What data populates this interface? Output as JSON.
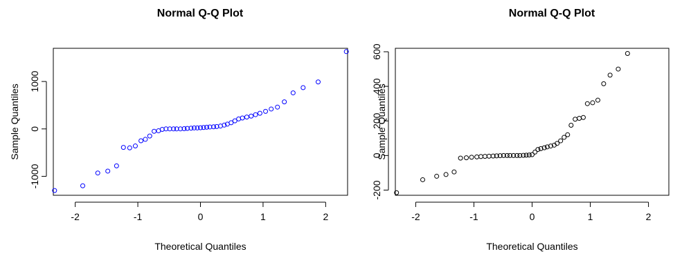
{
  "chart_data": [
    {
      "type": "scatter",
      "title": "Normal Q-Q Plot",
      "xlabel": "Theoretical Quantiles",
      "ylabel": "Sample Quantiles",
      "xlim": [
        -2.35,
        2.35
      ],
      "ylim": [
        -1400,
        1700
      ],
      "xticks": [
        -2,
        -1,
        0,
        1,
        2
      ],
      "yticks": [
        -1000,
        0,
        1000
      ],
      "point_color": "#0000ff",
      "grid": false,
      "points": [
        [
          -2.33,
          -1300
        ],
        [
          -1.88,
          -1200
        ],
        [
          -1.64,
          -930
        ],
        [
          -1.48,
          -890
        ],
        [
          -1.34,
          -780
        ],
        [
          -1.23,
          -390
        ],
        [
          -1.13,
          -400
        ],
        [
          -1.04,
          -360
        ],
        [
          -0.95,
          -250
        ],
        [
          -0.88,
          -220
        ],
        [
          -0.81,
          -150
        ],
        [
          -0.74,
          -50
        ],
        [
          -0.67,
          -40
        ],
        [
          -0.61,
          -10
        ],
        [
          -0.55,
          0
        ],
        [
          -0.49,
          0
        ],
        [
          -0.43,
          0
        ],
        [
          -0.38,
          0
        ],
        [
          -0.32,
          0
        ],
        [
          -0.26,
          5
        ],
        [
          -0.21,
          10
        ],
        [
          -0.15,
          15
        ],
        [
          -0.1,
          20
        ],
        [
          -0.05,
          20
        ],
        [
          0.0,
          25
        ],
        [
          0.05,
          30
        ],
        [
          0.1,
          35
        ],
        [
          0.15,
          40
        ],
        [
          0.21,
          45
        ],
        [
          0.26,
          50
        ],
        [
          0.32,
          60
        ],
        [
          0.38,
          80
        ],
        [
          0.43,
          100
        ],
        [
          0.49,
          130
        ],
        [
          0.55,
          170
        ],
        [
          0.61,
          210
        ],
        [
          0.67,
          230
        ],
        [
          0.74,
          250
        ],
        [
          0.81,
          270
        ],
        [
          0.88,
          300
        ],
        [
          0.95,
          330
        ],
        [
          1.04,
          370
        ],
        [
          1.13,
          420
        ],
        [
          1.23,
          460
        ],
        [
          1.34,
          570
        ],
        [
          1.48,
          760
        ],
        [
          1.64,
          870
        ],
        [
          1.88,
          990
        ],
        [
          2.33,
          1630
        ]
      ]
    },
    {
      "type": "scatter",
      "title": "Normal Q-Q Plot",
      "xlabel": "Theoretical Quantiles",
      "ylabel": "Sample Quantiles",
      "xlim": [
        -2.35,
        2.35
      ],
      "ylim": [
        -230,
        620
      ],
      "xticks": [
        -2,
        -1,
        0,
        1,
        2
      ],
      "yticks": [
        -200,
        0,
        200,
        400,
        600
      ],
      "point_color": "#000000",
      "grid": false,
      "points": [
        [
          -2.33,
          -215
        ],
        [
          -1.88,
          -140
        ],
        [
          -1.64,
          -120
        ],
        [
          -1.48,
          -110
        ],
        [
          -1.34,
          -95
        ],
        [
          -1.23,
          -15
        ],
        [
          -1.13,
          -13
        ],
        [
          -1.04,
          -10
        ],
        [
          -0.95,
          -8
        ],
        [
          -0.88,
          -6
        ],
        [
          -0.81,
          -5
        ],
        [
          -0.74,
          -4
        ],
        [
          -0.67,
          -3
        ],
        [
          -0.61,
          -2
        ],
        [
          -0.55,
          -1
        ],
        [
          -0.49,
          0
        ],
        [
          -0.43,
          0
        ],
        [
          -0.38,
          0
        ],
        [
          -0.32,
          0
        ],
        [
          -0.26,
          0
        ],
        [
          -0.21,
          0
        ],
        [
          -0.15,
          1
        ],
        [
          -0.1,
          2
        ],
        [
          -0.05,
          3
        ],
        [
          0.0,
          5
        ],
        [
          0.05,
          20
        ],
        [
          0.1,
          35
        ],
        [
          0.15,
          40
        ],
        [
          0.21,
          45
        ],
        [
          0.26,
          50
        ],
        [
          0.32,
          55
        ],
        [
          0.38,
          60
        ],
        [
          0.43,
          70
        ],
        [
          0.49,
          85
        ],
        [
          0.55,
          105
        ],
        [
          0.61,
          120
        ],
        [
          0.67,
          175
        ],
        [
          0.74,
          210
        ],
        [
          0.81,
          215
        ],
        [
          0.88,
          220
        ],
        [
          0.95,
          300
        ],
        [
          1.04,
          305
        ],
        [
          1.13,
          320
        ],
        [
          1.23,
          415
        ],
        [
          1.34,
          465
        ],
        [
          1.48,
          500
        ],
        [
          1.64,
          590
        ]
      ]
    }
  ]
}
